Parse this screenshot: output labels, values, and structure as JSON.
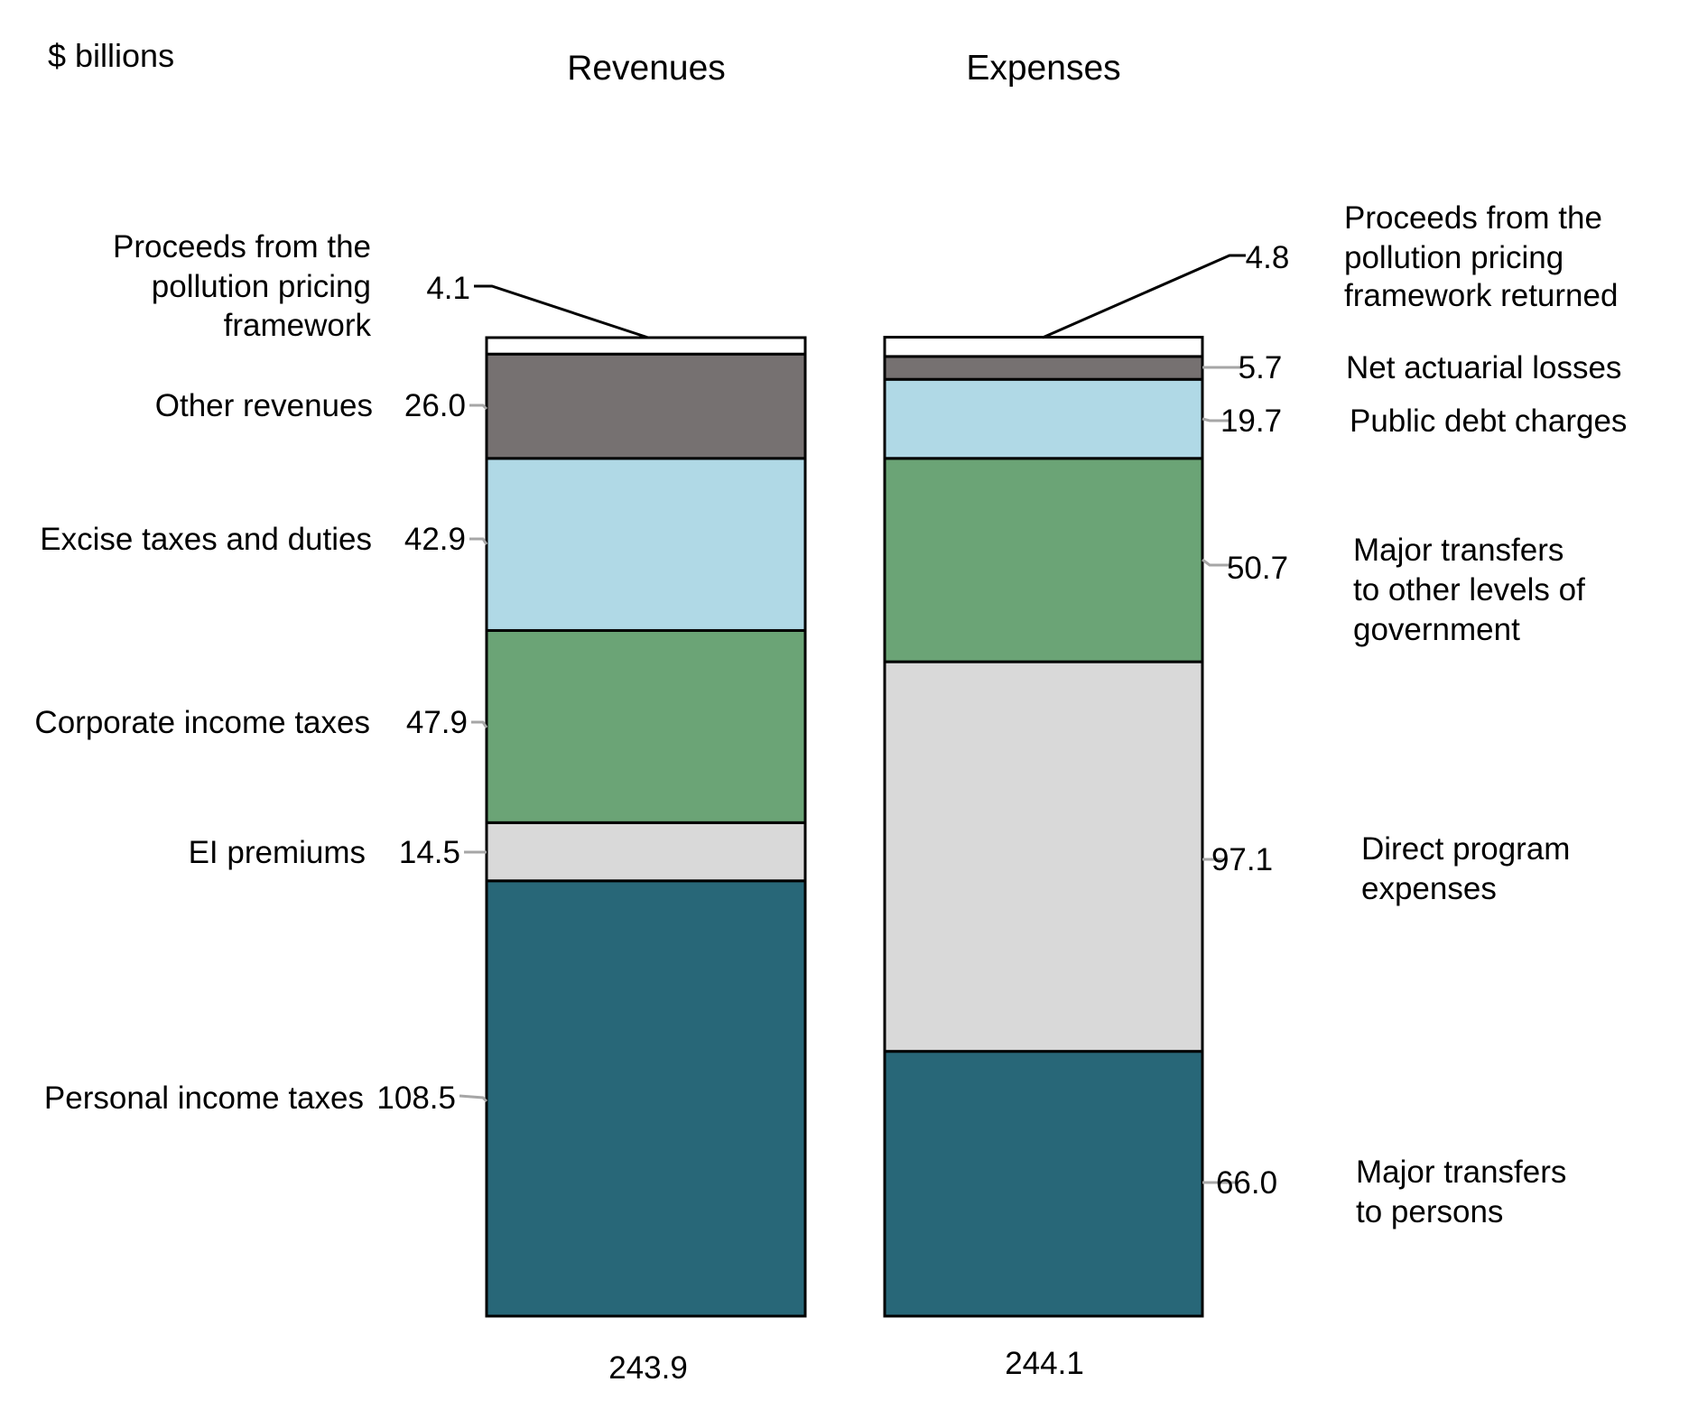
{
  "chart_data": {
    "type": "bar",
    "stacked": true,
    "units_label": "$ billions",
    "categories": [
      "Revenues",
      "Expenses"
    ],
    "totals": [
      "243.9",
      "244.1"
    ],
    "colors": {
      "white": "#ffffff",
      "dark_grey": "#767171",
      "light_blue": "#b0d9e6",
      "green": "#6ba476",
      "light_grey": "#d9d9d9",
      "teal": "#286778",
      "outline": "#000000",
      "leader_grey": "#a6a6a6"
    },
    "bars": [
      {
        "name": "Revenues",
        "total": 243.9,
        "segments_bottom_to_top": [
          {
            "label": "Personal income taxes",
            "value": 108.5,
            "value_text": "108.5",
            "color": "teal"
          },
          {
            "label": "EI premiums",
            "value": 14.5,
            "value_text": "14.5",
            "color": "light_grey"
          },
          {
            "label": "Corporate income taxes",
            "value": 47.9,
            "value_text": "47.9",
            "color": "green"
          },
          {
            "label": "Excise taxes and duties",
            "value": 42.9,
            "value_text": "42.9",
            "color": "light_blue"
          },
          {
            "label": "Other revenues",
            "value": 26.0,
            "value_text": "26.0",
            "color": "dark_grey"
          },
          {
            "label_lines": [
              "Proceeds from the",
              "pollution pricing",
              "framework"
            ],
            "label": "Proceeds from the pollution pricing framework",
            "value": 4.1,
            "value_text": "4.1",
            "color": "white"
          }
        ]
      },
      {
        "name": "Expenses",
        "total": 244.1,
        "segments_bottom_to_top": [
          {
            "label_lines": [
              "Major transfers",
              "to persons"
            ],
            "label": "Major transfers to persons",
            "value": 66.0,
            "value_text": "66.0",
            "color": "teal"
          },
          {
            "label_lines": [
              "Direct program",
              "expenses"
            ],
            "label": "Direct program expenses",
            "value": 97.1,
            "value_text": "97.1",
            "color": "light_grey"
          },
          {
            "label_lines": [
              "Major transfers",
              "to other levels of",
              "government"
            ],
            "label": "Major transfers to other levels of government",
            "value": 50.7,
            "value_text": "50.7",
            "color": "green"
          },
          {
            "label": "Public debt charges",
            "value": 19.7,
            "value_text": "19.7",
            "color": "light_blue"
          },
          {
            "label": "Net actuarial losses",
            "value": 5.7,
            "value_text": "5.7",
            "color": "dark_grey"
          },
          {
            "label_lines": [
              "Proceeds from the",
              "pollution pricing",
              "framework returned"
            ],
            "label": "Proceeds from the pollution pricing framework returned",
            "value": 4.8,
            "value_text": "4.8",
            "color": "white"
          }
        ]
      }
    ],
    "legend": "none (direct labels)",
    "grid": false
  }
}
